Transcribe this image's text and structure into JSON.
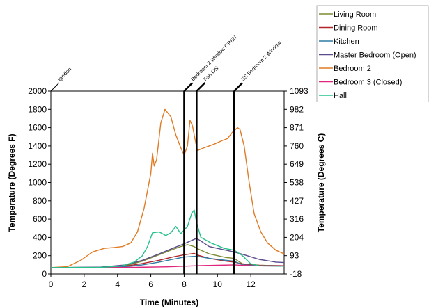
{
  "chart_data": {
    "type": "line",
    "xlabel": "Time (Minutes)",
    "ylabel_left": "Temperature (Degrees F)",
    "ylabel_right": "Temperature (Degrees C)",
    "xlim": [
      0,
      14
    ],
    "x_ticks": [
      0,
      2,
      4,
      6,
      8,
      10,
      12
    ],
    "ylim": [
      0,
      2000
    ],
    "y_ticks": [
      0,
      200,
      400,
      600,
      800,
      1000,
      1200,
      1400,
      1600,
      1800,
      2000
    ],
    "y_right_ticks": [
      "-18",
      "93",
      "204",
      "316",
      "427",
      "538",
      "649",
      "760",
      "871",
      "982",
      "1093"
    ],
    "grid": false,
    "legend_position": "top-right",
    "events": [
      {
        "x": 0,
        "label": "Ignition"
      },
      {
        "x": 8.0,
        "label": "Bedroom 2 Window OPEN"
      },
      {
        "x": 8.75,
        "label": "Fan ON"
      },
      {
        "x": 11.0,
        "label": "SS Bedroom 2 Window"
      }
    ],
    "series": [
      {
        "name": "Living Room",
        "color": "#7f8b34",
        "points": [
          [
            0,
            70
          ],
          [
            3,
            72
          ],
          [
            4.5,
            90
          ],
          [
            5.5,
            140
          ],
          [
            6.5,
            210
          ],
          [
            7.2,
            260
          ],
          [
            7.8,
            300
          ],
          [
            8.2,
            320
          ],
          [
            8.6,
            300
          ],
          [
            8.75,
            280
          ],
          [
            9.5,
            220
          ],
          [
            10.5,
            180
          ],
          [
            11,
            170
          ],
          [
            11.5,
            110
          ],
          [
            12.5,
            95
          ],
          [
            14,
            90
          ]
        ]
      },
      {
        "name": "Dining Room",
        "color": "#b0262b",
        "points": [
          [
            0,
            70
          ],
          [
            3,
            72
          ],
          [
            4.5,
            85
          ],
          [
            5.5,
            115
          ],
          [
            6.5,
            150
          ],
          [
            7.3,
            185
          ],
          [
            8,
            210
          ],
          [
            8.6,
            225
          ],
          [
            8.75,
            210
          ],
          [
            9.5,
            170
          ],
          [
            10.5,
            140
          ],
          [
            11,
            130
          ],
          [
            11.5,
            110
          ],
          [
            12.5,
            95
          ],
          [
            14,
            90
          ]
        ]
      },
      {
        "name": "Kitchen",
        "color": "#2f7ba4",
        "points": [
          [
            0,
            70
          ],
          [
            3,
            72
          ],
          [
            4.5,
            80
          ],
          [
            5.5,
            100
          ],
          [
            6.5,
            130
          ],
          [
            7.3,
            160
          ],
          [
            8,
            185
          ],
          [
            8.75,
            195
          ],
          [
            9.5,
            170
          ],
          [
            10.5,
            150
          ],
          [
            11,
            140
          ],
          [
            11.5,
            100
          ],
          [
            12.5,
            90
          ],
          [
            14,
            85
          ]
        ]
      },
      {
        "name": "Master Bedroom (Open)",
        "color": "#5b4b8a",
        "points": [
          [
            0,
            70
          ],
          [
            3,
            75
          ],
          [
            4.5,
            100
          ],
          [
            5.5,
            150
          ],
          [
            6.5,
            220
          ],
          [
            7.3,
            280
          ],
          [
            8,
            330
          ],
          [
            8.5,
            370
          ],
          [
            8.75,
            390
          ],
          [
            9.5,
            300
          ],
          [
            10.5,
            260
          ],
          [
            11,
            240
          ],
          [
            11.5,
            215
          ],
          [
            12.5,
            160
          ],
          [
            13.5,
            130
          ],
          [
            14,
            125
          ]
        ]
      },
      {
        "name": "Bedroom 2",
        "color": "#e07b24",
        "points": [
          [
            0,
            70
          ],
          [
            1,
            80
          ],
          [
            1.8,
            150
          ],
          [
            2.5,
            240
          ],
          [
            3.2,
            280
          ],
          [
            3.8,
            290
          ],
          [
            4.3,
            300
          ],
          [
            4.8,
            340
          ],
          [
            5.2,
            460
          ],
          [
            5.6,
            720
          ],
          [
            6.0,
            1100
          ],
          [
            6.1,
            1320
          ],
          [
            6.2,
            1180
          ],
          [
            6.35,
            1250
          ],
          [
            6.6,
            1650
          ],
          [
            6.85,
            1800
          ],
          [
            7.2,
            1720
          ],
          [
            7.5,
            1520
          ],
          [
            7.8,
            1380
          ],
          [
            8.0,
            1300
          ],
          [
            8.2,
            1400
          ],
          [
            8.35,
            1680
          ],
          [
            8.5,
            1620
          ],
          [
            8.7,
            1430
          ],
          [
            8.8,
            1350
          ],
          [
            9.2,
            1380
          ],
          [
            9.8,
            1420
          ],
          [
            10.3,
            1460
          ],
          [
            10.6,
            1480
          ],
          [
            10.9,
            1550
          ],
          [
            11.2,
            1600
          ],
          [
            11.35,
            1580
          ],
          [
            11.6,
            1400
          ],
          [
            11.9,
            1000
          ],
          [
            12.2,
            660
          ],
          [
            12.6,
            460
          ],
          [
            13,
            340
          ],
          [
            13.5,
            260
          ],
          [
            14,
            220
          ]
        ]
      },
      {
        "name": "Bedroom 3 (Closed)",
        "color": "#e0257d",
        "points": [
          [
            0,
            70
          ],
          [
            3,
            70
          ],
          [
            5,
            72
          ],
          [
            7,
            78
          ],
          [
            8,
            85
          ],
          [
            9,
            92
          ],
          [
            10,
            95
          ],
          [
            11,
            100
          ],
          [
            12,
            90
          ],
          [
            13,
            88
          ],
          [
            14,
            88
          ]
        ]
      },
      {
        "name": "Hall",
        "color": "#26c08a",
        "points": [
          [
            0,
            70
          ],
          [
            3,
            72
          ],
          [
            4.2,
            85
          ],
          [
            5,
            130
          ],
          [
            5.5,
            200
          ],
          [
            5.8,
            300
          ],
          [
            6.1,
            450
          ],
          [
            6.5,
            460
          ],
          [
            6.9,
            420
          ],
          [
            7.2,
            450
          ],
          [
            7.5,
            520
          ],
          [
            7.8,
            440
          ],
          [
            8.2,
            520
          ],
          [
            8.45,
            660
          ],
          [
            8.6,
            700
          ],
          [
            8.75,
            560
          ],
          [
            9.0,
            400
          ],
          [
            9.6,
            340
          ],
          [
            10.4,
            280
          ],
          [
            11,
            260
          ],
          [
            11.5,
            200
          ],
          [
            12,
            110
          ],
          [
            12.5,
            90
          ],
          [
            14,
            85
          ]
        ]
      }
    ]
  }
}
